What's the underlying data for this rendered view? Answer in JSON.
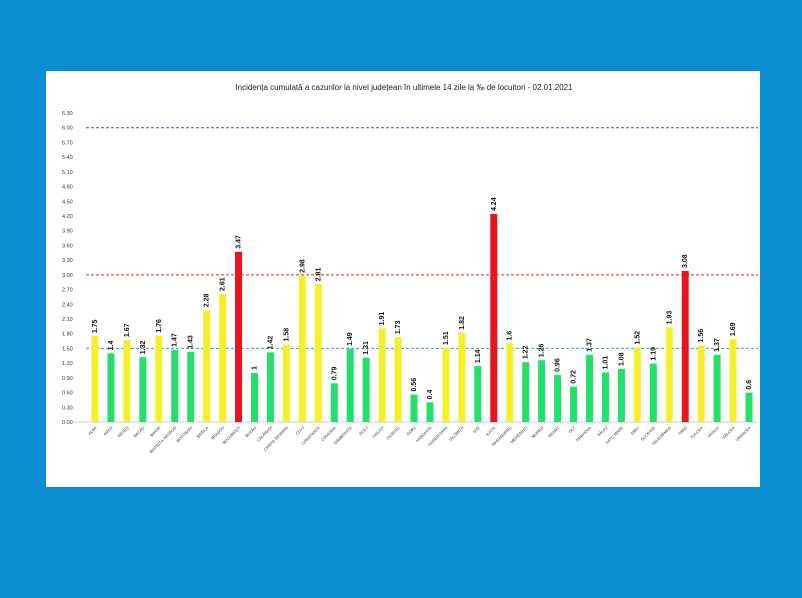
{
  "chart_data": {
    "type": "bar",
    "title": "Incidența cumulată a cazurilor la nivel județean în ultimele 14 zile la ‰ de locuitori - 02.01.2021",
    "ylim": [
      0,
      6.3
    ],
    "yticks": [
      "0.00",
      "0.30",
      "0.60",
      "0.90",
      "1.20",
      "1.50",
      "1.80",
      "2.10",
      "2.40",
      "2.70",
      "3.00",
      "3.30",
      "3.60",
      "3.90",
      "4.20",
      "4.50",
      "4.80",
      "5.10",
      "5.40",
      "5.70",
      "6.00",
      "6.30"
    ],
    "reference_lines": [
      {
        "value": 6.0,
        "color": "#6a3ea1"
      },
      {
        "value": 3.0,
        "color": "#d62828"
      },
      {
        "value": 1.5,
        "color": "#2a9fd6"
      }
    ],
    "categories": [
      "ALBA",
      "ARAD",
      "ARGEȘ",
      "BACĂU",
      "BIHOR",
      "BISTRIȚA-NĂSĂUD",
      "BOTOȘANI",
      "BRĂILA",
      "BRAȘOV",
      "BUCUREȘTI",
      "BUZĂU",
      "CĂLĂRAȘI",
      "CARAȘ-SEVERIN",
      "CLUJ",
      "CONSTANȚA",
      "COVASNA",
      "DÂMBOVIȚA",
      "DOLJ",
      "GALAȚI",
      "GIURGIU",
      "GORJ",
      "HARGHITA",
      "HUNEDOARA",
      "IALOMIȚA",
      "IAȘI",
      "ILFOV",
      "MARAMUREȘ",
      "MEHEDINȚI",
      "MUREȘ",
      "NEAMȚ",
      "OLT",
      "PRAHOVA",
      "SĂLAJ",
      "SATU MARE",
      "SIBIU",
      "SUCEAVA",
      "TELEORMAN",
      "TIMIȘ",
      "TULCEA",
      "VASLUI",
      "VÂLCEA",
      "VRANCEA"
    ],
    "values": [
      1.75,
      1.4,
      1.67,
      1.32,
      1.76,
      1.47,
      1.43,
      2.28,
      2.61,
      3.47,
      1,
      1.42,
      1.58,
      2.98,
      2.81,
      0.79,
      1.49,
      1.31,
      1.91,
      1.73,
      0.56,
      0.4,
      1.51,
      1.82,
      1.14,
      4.24,
      1.6,
      1.22,
      1.26,
      0.96,
      0.72,
      1.37,
      1.01,
      1.08,
      1.52,
      1.19,
      1.93,
      3.08,
      1.56,
      1.37,
      1.69,
      0.6
    ],
    "value_labels": [
      "1.75",
      "1.4",
      "1.67",
      "1.32",
      "1.76",
      "1.47",
      "1.43",
      "2.28",
      "2.61",
      "3.47",
      "1",
      "1.42",
      "1.58",
      "2.98",
      "2.81",
      "0.79",
      "1.49",
      "1.31",
      "1.91",
      "1.73",
      "0.56",
      "0.4",
      "1.51",
      "1.82",
      "1.14",
      "4.24",
      "1.6",
      "1.22",
      "1.26",
      "0.96",
      "0.72",
      "1.37",
      "1.01",
      "1.08",
      "1.52",
      "1.19",
      "1.93",
      "3.08",
      "1.56",
      "1.37",
      "1.69",
      "0.6"
    ],
    "colors": {
      "low": "#22e06a",
      "mid": "#f5f02a",
      "high": "#e8141b"
    },
    "thresholds": [
      1.5,
      3.0
    ]
  }
}
